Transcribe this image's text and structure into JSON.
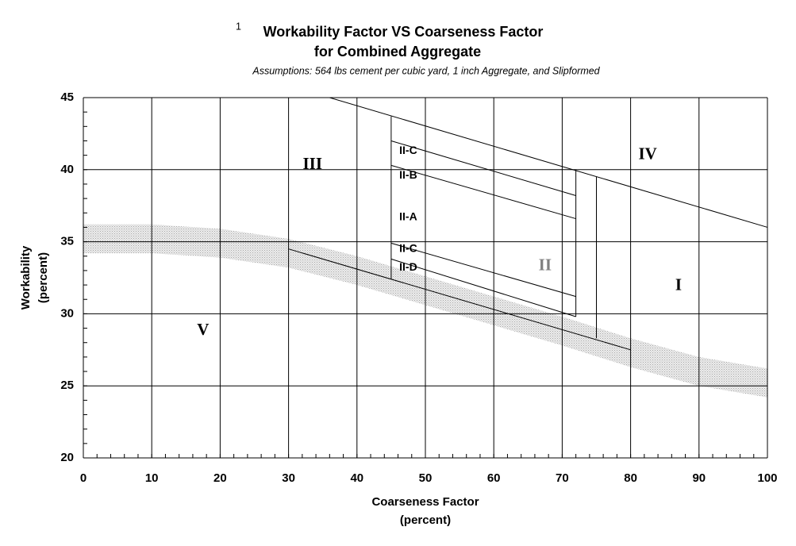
{
  "chart_data": {
    "type": "zone-chart",
    "title_note": "1",
    "title": "Workability Factor VS Coarseness Factor",
    "title_line2": "for Combined Aggregate",
    "subtitle": "Assumptions: 564 lbs cement per cubic yard, 1 inch Aggregate,  and Slipformed",
    "x_label": "Coarseness Factor",
    "x_label_unit": "(percent)",
    "y_label": "Workability",
    "y_label_unit": "(percent)",
    "xlim": [
      0,
      100
    ],
    "ylim": [
      20,
      45
    ],
    "xticks": [
      0,
      10,
      20,
      30,
      40,
      50,
      60,
      70,
      80,
      90,
      100
    ],
    "yticks": [
      20,
      25,
      30,
      35,
      40,
      45
    ],
    "x_minor_step": 2,
    "y_minor_step": 1,
    "grid": true,
    "line_color": "#000000",
    "band": {
      "color": "#bdbdbd",
      "x": [
        0,
        10,
        20,
        30,
        40,
        50,
        60,
        70,
        80,
        90,
        100
      ],
      "upper": [
        36.2,
        36.2,
        35.9,
        35.2,
        34.0,
        32.6,
        31.2,
        29.8,
        28.3,
        27.0,
        26.2
      ],
      "lower": [
        34.2,
        34.2,
        33.9,
        33.2,
        32.0,
        30.6,
        29.2,
        27.8,
        26.3,
        25.0,
        24.2
      ]
    },
    "lines": [
      {
        "x": [
          36,
          100
        ],
        "y": [
          45,
          36
        ]
      },
      {
        "x": [
          30,
          80
        ],
        "y": [
          34.5,
          27.5
        ]
      },
      {
        "x": [
          45,
          45
        ],
        "y": [
          43.7,
          32.4
        ]
      },
      {
        "x": [
          45,
          72
        ],
        "y": [
          42.0,
          38.2
        ]
      },
      {
        "x": [
          45,
          72
        ],
        "y": [
          40.3,
          36.6
        ]
      },
      {
        "x": [
          45,
          72
        ],
        "y": [
          34.9,
          31.2
        ]
      },
      {
        "x": [
          45,
          72
        ],
        "y": [
          33.8,
          29.8
        ]
      },
      {
        "x": [
          72,
          72
        ],
        "y": [
          40.0,
          29.8
        ]
      },
      {
        "x": [
          75,
          75
        ],
        "y": [
          39.5,
          28.3
        ]
      }
    ],
    "regions": [
      {
        "label": "III",
        "x": 33.5,
        "y": 40.3,
        "style": "roman",
        "color": "#000000"
      },
      {
        "label": "IV",
        "x": 82.5,
        "y": 41.0,
        "style": "roman",
        "color": "#000000"
      },
      {
        "label": "II-C",
        "x": 47.5,
        "y": 41.3,
        "style": "sm",
        "color": "#000000"
      },
      {
        "label": "II-B",
        "x": 47.5,
        "y": 39.6,
        "style": "sm",
        "color": "#000000"
      },
      {
        "label": "II-A",
        "x": 47.5,
        "y": 36.7,
        "style": "sm",
        "color": "#000000"
      },
      {
        "label": "II-C",
        "x": 47.5,
        "y": 34.5,
        "style": "sm",
        "color": "#000000"
      },
      {
        "label": "II-D",
        "x": 47.5,
        "y": 33.2,
        "style": "sm",
        "color": "#000000"
      },
      {
        "label": "II",
        "x": 67.5,
        "y": 33.3,
        "style": "roman",
        "color": "#808080"
      },
      {
        "label": "I",
        "x": 87.0,
        "y": 31.9,
        "style": "roman",
        "color": "#000000"
      },
      {
        "label": "V",
        "x": 17.5,
        "y": 28.8,
        "style": "roman",
        "color": "#000000"
      }
    ]
  }
}
